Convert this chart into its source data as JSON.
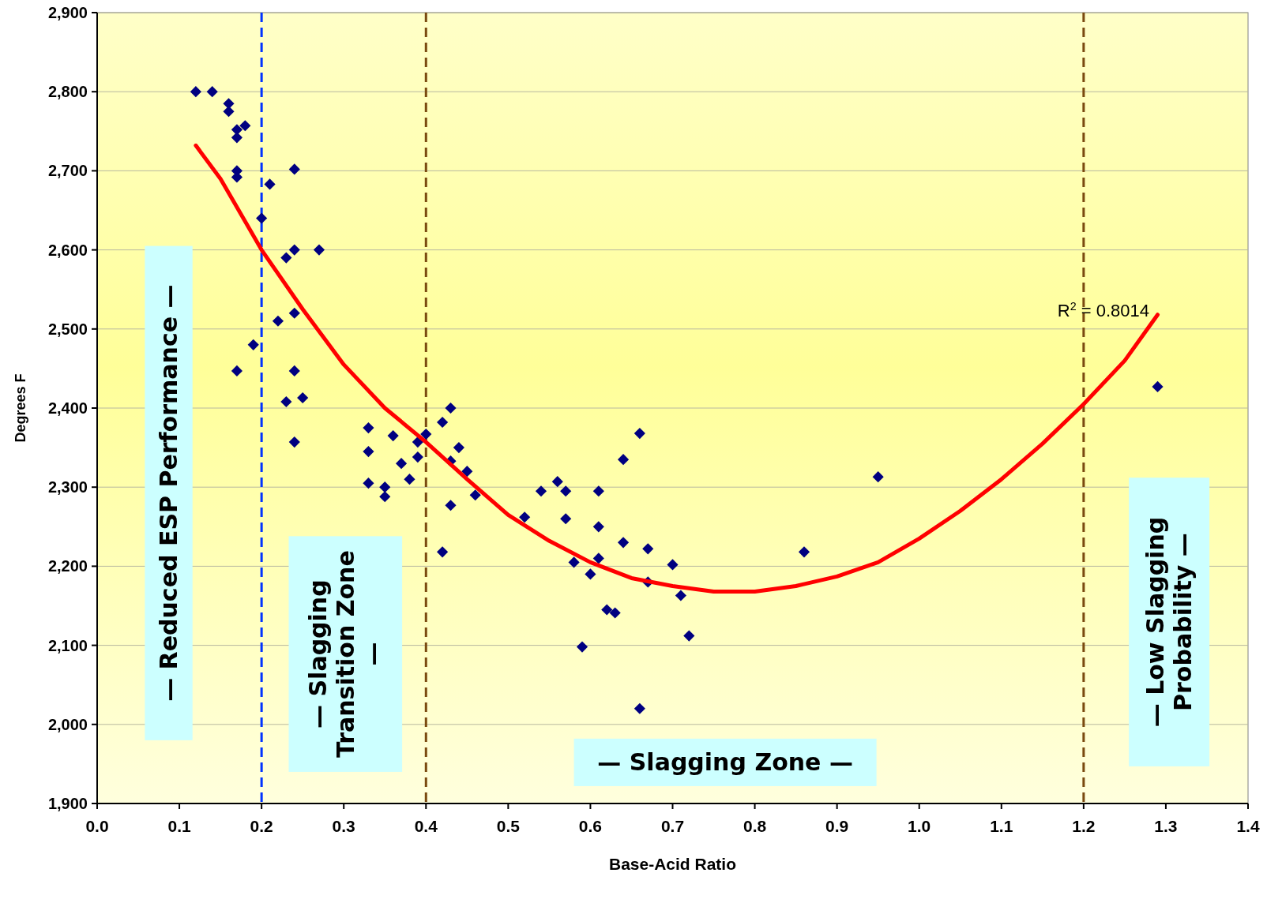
{
  "chart_data": {
    "type": "scatter",
    "xlabel": "Base-Acid Ratio",
    "ylabel": "Degrees F",
    "xlim": [
      0,
      1.4
    ],
    "xticks": [
      {
        "value": 0,
        "label": "0.0"
      },
      0.1,
      0.2,
      0.3,
      0.4,
      0.5,
      0.6,
      0.7,
      0.8,
      0.9,
      {
        "value": 1,
        "label": "1.0"
      },
      1.1,
      1.2,
      1.3,
      1.4
    ],
    "ylim": [
      1900,
      2900
    ],
    "yticks": [
      {
        "value": 1900,
        "label": "1,900"
      },
      {
        "value": 2000,
        "label": "2,000"
      },
      {
        "value": 2100,
        "label": "2,100"
      },
      {
        "value": 2200,
        "label": "2,200"
      },
      {
        "value": 2300,
        "label": "2,300"
      },
      {
        "value": 2400,
        "label": "2,400"
      },
      {
        "value": 2500,
        "label": "2,500"
      },
      {
        "value": 2600,
        "label": "2,600"
      },
      {
        "value": 2700,
        "label": "2,700"
      },
      {
        "value": 2800,
        "label": "2,800"
      },
      {
        "value": 2900,
        "label": "2,900"
      }
    ],
    "grid": "y",
    "series": [
      {
        "marker": "diamond",
        "color": "#000080",
        "x": [
          0.12,
          0.14,
          0.16,
          0.16,
          0.17,
          0.17,
          0.18,
          0.17,
          0.17,
          0.2,
          0.21,
          0.24,
          0.23,
          0.24,
          0.27,
          0.22,
          0.24,
          0.19,
          0.17,
          0.24,
          0.23,
          0.25,
          0.24,
          0.33,
          0.33,
          0.33,
          0.35,
          0.35,
          0.36,
          0.37,
          0.38,
          0.39,
          0.39,
          0.4,
          0.42,
          0.43,
          0.43,
          0.44,
          0.45,
          0.46,
          0.43,
          0.42,
          0.52,
          0.54,
          0.56,
          0.57,
          0.57,
          0.58,
          0.6,
          0.61,
          0.61,
          0.61,
          0.62,
          0.63,
          0.64,
          0.64,
          0.66,
          0.67,
          0.67,
          0.7,
          0.71,
          0.72,
          0.59,
          0.66,
          0.86,
          0.95,
          1.29
        ],
        "values": [
          2800,
          2800,
          2785,
          2775,
          2752,
          2742,
          2757,
          2700,
          2692,
          2640,
          2683,
          2702,
          2590,
          2600,
          2600,
          2510,
          2520,
          2480,
          2447,
          2447,
          2408,
          2413,
          2357,
          2375,
          2345,
          2305,
          2300,
          2288,
          2365,
          2330,
          2310,
          2357,
          2338,
          2367,
          2382,
          2400,
          2333,
          2350,
          2320,
          2290,
          2277,
          2218,
          2262,
          2295,
          2307,
          2295,
          2260,
          2205,
          2190,
          2295,
          2250,
          2210,
          2145,
          2141,
          2335,
          2230,
          2368,
          2222,
          2180,
          2202,
          2163,
          2112,
          2098,
          2020,
          2218,
          2313,
          2427
        ]
      },
      {
        "type": "line",
        "marker": "none",
        "color": "#ff0000",
        "x": [
          0.12,
          0.15,
          0.2,
          0.25,
          0.3,
          0.35,
          0.4,
          0.45,
          0.5,
          0.55,
          0.6,
          0.65,
          0.7,
          0.75,
          0.8,
          0.85,
          0.9,
          0.95,
          1.0,
          1.05,
          1.1,
          1.15,
          1.2,
          1.25,
          1.29
        ],
        "values": [
          2732,
          2690,
          2600,
          2525,
          2455,
          2400,
          2357,
          2310,
          2265,
          2232,
          2205,
          2185,
          2175,
          2168,
          2168,
          2175,
          2187,
          2205,
          2235,
          2270,
          2310,
          2355,
          2405,
          2460,
          2518
        ]
      }
    ],
    "ref_lines": [
      {
        "axis": "x",
        "value": 0.2,
        "color": "#0033ff",
        "line_style": "dashed"
      },
      {
        "axis": "x",
        "value": 0.4,
        "color": "#7a4a10",
        "line_style": "dashed"
      },
      {
        "axis": "x",
        "value": 1.2,
        "color": "#7a4a10",
        "line_style": "dashed"
      }
    ],
    "annotations": [
      "— Reduced ESP Performance —",
      "— Slagging Transition Zone —",
      "— Slagging Zone —",
      "— Low Slagging Probability —",
      "R$^{2}$ = 0.8014"
    ]
  }
}
